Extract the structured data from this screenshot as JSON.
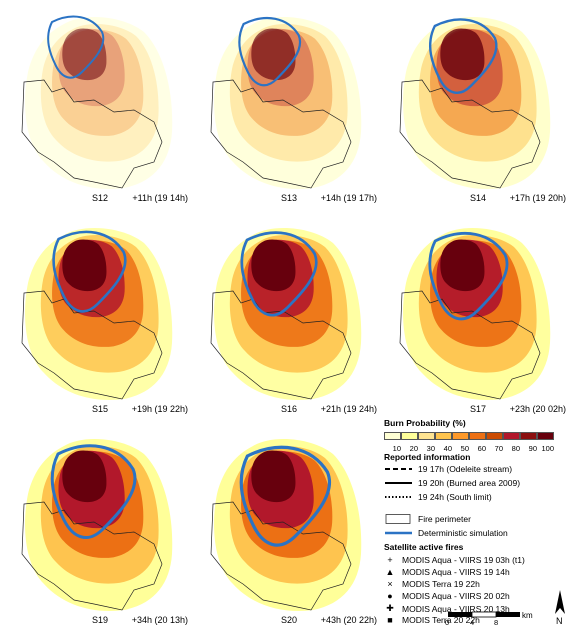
{
  "panels": [
    {
      "id": "S12",
      "time": "+11h (19 14h)"
    },
    {
      "id": "S13",
      "time": "+14h (19 17h)"
    },
    {
      "id": "S14",
      "time": "+17h (19 20h)"
    },
    {
      "id": "S15",
      "time": "+19h (19 22h)"
    },
    {
      "id": "S16",
      "time": "+21h (19 24h)"
    },
    {
      "id": "S17",
      "time": "+23h (20 02h)"
    },
    {
      "id": "S19",
      "time": "+34h (20 13h)"
    },
    {
      "id": "S20",
      "time": "+43h (20 22h)"
    }
  ],
  "legend": {
    "burn_title": "Burn Probability (%)",
    "ticks": [
      "10",
      "20",
      "30",
      "40",
      "50",
      "60",
      "70",
      "80",
      "90",
      "100"
    ],
    "ramp_colors": [
      "#ffffd4",
      "#ffff99",
      "#fee391",
      "#fec44f",
      "#fe9929",
      "#ec7014",
      "#cc4c02",
      "#b2182b",
      "#8c1010",
      "#67000d"
    ],
    "reported_title": "Reported information",
    "reported": [
      {
        "style": "dashed",
        "label": "19 17h (Odeleite stream)"
      },
      {
        "style": "solid",
        "label": "19 20h (Burned area 2009)"
      },
      {
        "style": "dotted",
        "label": "19 24h (South limit)"
      }
    ],
    "fire_perimeter": "Fire perimeter",
    "deterministic": "Deterministic simulation",
    "satellite_title": "Satellite active fires",
    "satellite": [
      {
        "symbol": "+",
        "label": "MODIS Aqua - VIIRS 19 03h (t1)"
      },
      {
        "symbol": "▲",
        "label": "MODIS Aqua - VIIRS 19 14h"
      },
      {
        "symbol": "×",
        "label": "MODIS Terra 19 22h"
      },
      {
        "symbol": "●",
        "label": "MODIS Aqua - VIIRS 20 02h"
      },
      {
        "symbol": "✚",
        "label": "MODIS Aqua - VIIRS 20 13h"
      },
      {
        "symbol": "■",
        "label": "MODIS Terra 20 22h"
      }
    ],
    "scale": {
      "ticks": [
        "0",
        "4",
        "8"
      ],
      "unit": "km"
    },
    "north": "N"
  }
}
